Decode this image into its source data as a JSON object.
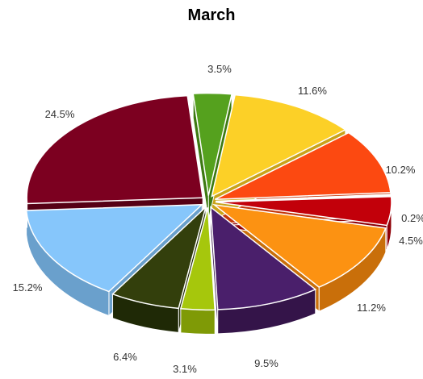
{
  "chart_data": {
    "type": "pie",
    "title": "March",
    "style": "3d-exploded",
    "slices": [
      {
        "label": "3.5%",
        "value": 3.5,
        "color": "#55a11e",
        "side": "#3d7a12"
      },
      {
        "label": "11.6%",
        "value": 11.6,
        "color": "#fcd027",
        "side": "#c9a31a"
      },
      {
        "label": "10.2%",
        "value": 10.2,
        "color": "#fc4911",
        "side": "#c4360a"
      },
      {
        "label": "0.2%",
        "value": 0.2,
        "color": "#c2000a",
        "side": "#8f0007"
      },
      {
        "label": "4.5%",
        "value": 4.5,
        "color": "#c2000a",
        "side": "#8f0007"
      },
      {
        "label": "11.2%",
        "value": 11.2,
        "color": "#fc9212",
        "side": "#c96f0a"
      },
      {
        "label": "9.5%",
        "value": 9.5,
        "color": "#4a1f6b",
        "side": "#341449"
      },
      {
        "label": "3.1%",
        "value": 3.1,
        "color": "#a6c70c",
        "side": "#7f9a06"
      },
      {
        "label": "6.4%",
        "value": 6.4,
        "color": "#333f0c",
        "side": "#1f2906"
      },
      {
        "label": "15.2%",
        "value": 15.2,
        "color": "#86c6fb",
        "side": "#6aa0cc"
      },
      {
        "label": "24.5%",
        "value": 24.5,
        "color": "#7c0020",
        "side": "#560015"
      }
    ]
  }
}
